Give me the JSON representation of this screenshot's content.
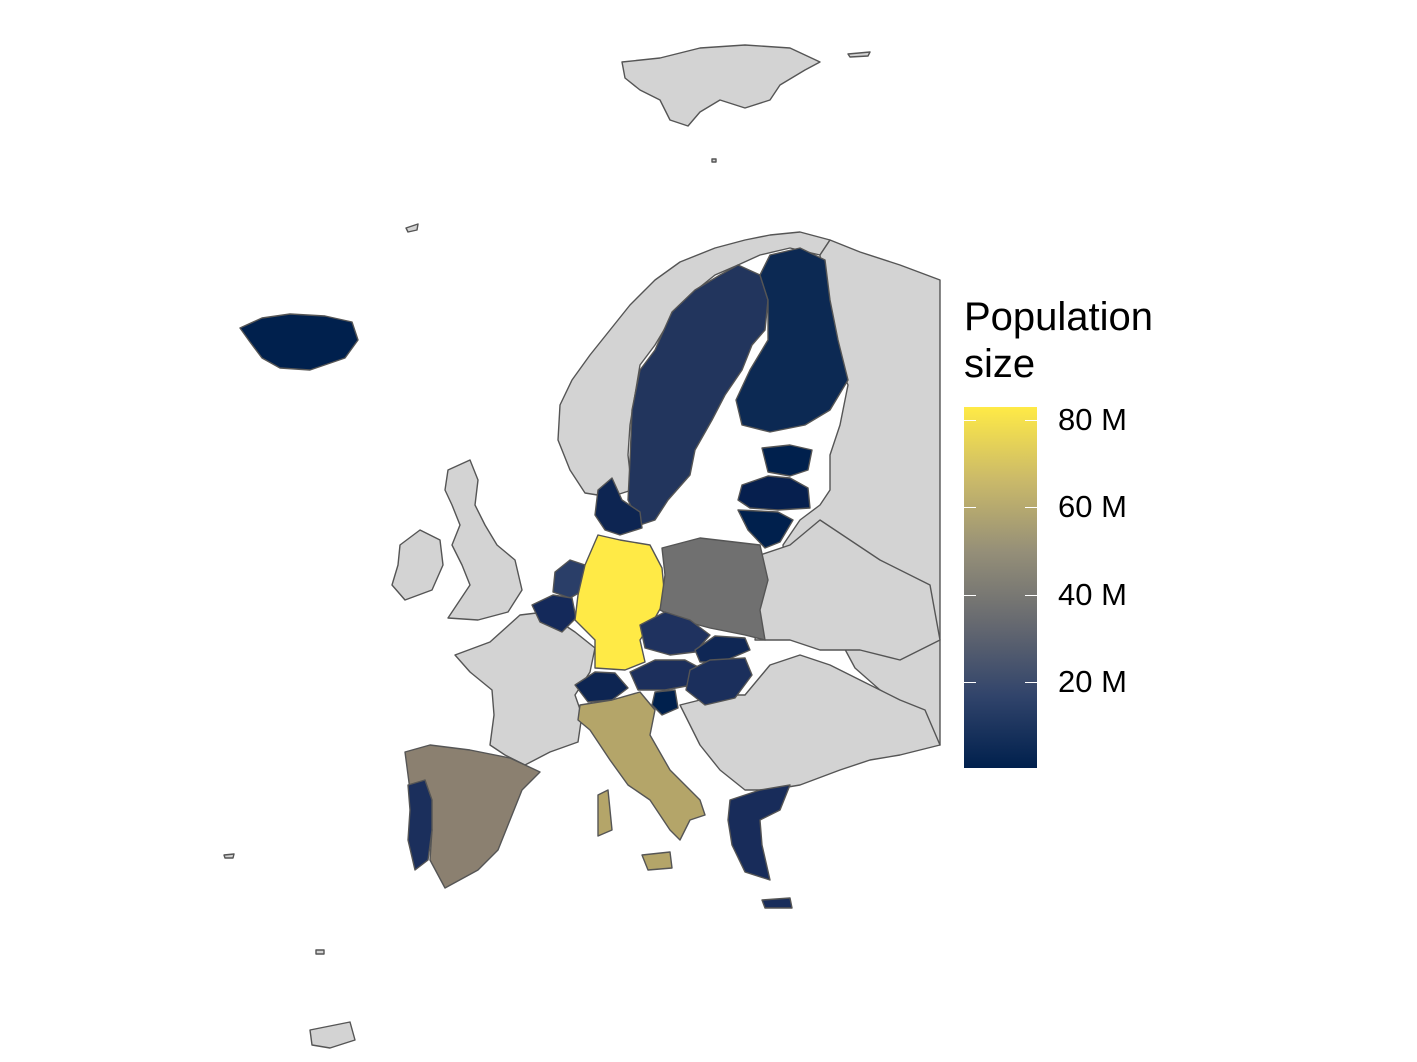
{
  "legend": {
    "title": "Population\nsize",
    "ticks": [
      {
        "label": "80 M",
        "value": 80
      },
      {
        "label": "60 M",
        "value": 60
      },
      {
        "label": "40 M",
        "value": 40
      },
      {
        "label": "20 M",
        "value": 20
      }
    ],
    "range": [
      0.3,
      83
    ],
    "colors": [
      "#00204d",
      "#31446b",
      "#666970",
      "#958f78",
      "#cbba69",
      "#ffea46"
    ]
  },
  "colors": {
    "no_data": "#d3d3d3",
    "border": "#555555",
    "background": "#ffffff"
  }
}
